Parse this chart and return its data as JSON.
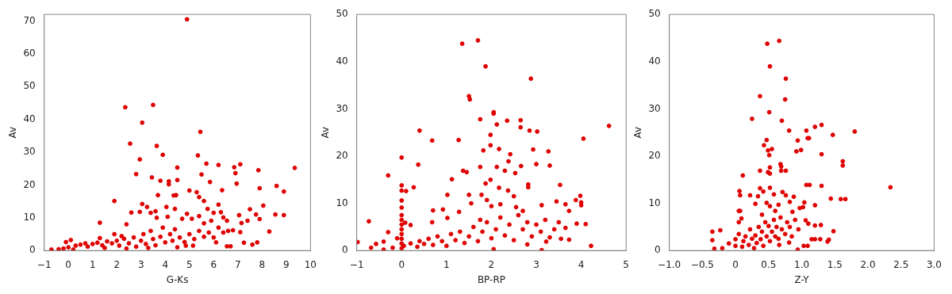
{
  "chart_data": [
    {
      "type": "scatter",
      "xlabel": "G-Ks",
      "ylabel": "Av",
      "xlim": [
        -1,
        10
      ],
      "ylim": [
        0,
        72
      ],
      "xticks": [
        {
          "value": -1,
          "label": "−1"
        },
        0,
        1,
        2,
        3,
        4,
        5,
        6,
        7,
        8,
        9,
        10
      ],
      "yticks": [
        0,
        10,
        20,
        30,
        40,
        50,
        60,
        70
      ],
      "grid": false,
      "legend": false,
      "marker": "circle",
      "series": [
        {
          "color": "#e00000",
          "x": [
            4.9,
            2.35,
            3.5,
            3.05,
            5.45,
            2.55,
            3.65,
            3.9,
            2.95,
            5.35,
            5.7,
            6.2,
            7.1,
            6.85,
            4.5,
            9.35,
            7.85,
            2.8,
            6.9,
            5.5,
            3.45,
            3.8,
            4.15,
            4.15,
            4.5,
            5.85,
            6.95,
            8.6,
            7.9,
            5,
            6.35,
            8.9,
            5.3,
            3.7,
            4.35,
            4.45,
            5.4,
            1.9,
            5.6,
            5.75,
            6.2,
            8.05,
            3.05,
            3.25,
            4.05,
            2.6,
            2.95,
            3.4,
            3.6,
            4.4,
            4.9,
            6.0,
            6.3,
            7.05,
            7.75,
            8.55,
            8.9,
            7.5,
            1.3,
            2.4,
            3.65,
            4.1,
            4.7,
            5.1,
            5.4,
            5.6,
            5.9,
            6.4,
            6.55,
            7.15,
            7.4,
            7.9,
            8.3,
            7.1,
            6.8,
            7.25,
            7.6,
            7.8,
            6.55,
            6.7,
            6.1,
            5.15,
            4.85,
            -0.7,
            -0.4,
            -0.2,
            0,
            0.1,
            -0.1,
            0.3,
            0.5,
            0.7,
            0.8,
            1,
            1.2,
            1.4,
            1.6,
            1.8,
            2,
            2.1,
            2.3,
            2.5,
            2.7,
            2.8,
            3,
            3.1,
            3.2,
            3.4,
            3.5,
            3.6,
            3.8,
            3.9,
            4,
            4.2,
            4.3,
            4.4,
            4.6,
            4.8,
            5,
            5.2,
            5.4,
            5.6,
            5.8,
            6,
            6.2,
            6.4,
            6.6,
            1.9,
            2.2,
            1.3,
            3.3,
            4.5,
            0.2,
            1.5,
            2.4
          ],
          "values": [
            70.5,
            43.7,
            44.4,
            39,
            36.2,
            32.6,
            31.9,
            29.2,
            27.8,
            29,
            26.5,
            26.1,
            26.3,
            25.4,
            25.3,
            25.2,
            24.5,
            23.3,
            23.6,
            23.2,
            22.3,
            21.3,
            21.1,
            20.2,
            21.5,
            20.9,
            20.4,
            19.7,
            19,
            18.3,
            18.4,
            18,
            17.8,
            16.9,
            16.8,
            16.9,
            16.3,
            15.1,
            15.1,
            12.7,
            14,
            13.7,
            14.2,
            13.3,
            13.3,
            11.6,
            11.8,
            11.5,
            12,
            12.7,
            11.2,
            11.5,
            11.7,
            10.8,
            11,
            11,
            10.8,
            12.6,
            8.5,
            8,
            10,
            10.3,
            9.7,
            9.7,
            10.5,
            8.3,
            9.1,
            10.1,
            9.1,
            8.4,
            9.1,
            9.6,
            5.8,
            5.6,
            6.2,
            2.4,
            1.8,
            2.5,
            1.3,
            1.3,
            2.5,
            1.5,
            1.5,
            0.3,
            0.4,
            0.6,
            1,
            3.2,
            2.6,
            1.5,
            1.8,
            2.2,
            1.2,
            2,
            2.4,
            1.6,
            2.8,
            2.2,
            3,
            1.5,
            3.6,
            2.2,
            4,
            1.2,
            3,
            5,
            2,
            6,
            3.5,
            1.6,
            4.2,
            7,
            2.5,
            5,
            3,
            6.5,
            4,
            2.6,
            5,
            3.5,
            6,
            4.2,
            5.5,
            4,
            7,
            5.5,
            6,
            5,
            4.4,
            3.8,
            0.8,
            1,
            0.3,
            0.8,
            0.6
          ]
        }
      ]
    },
    {
      "type": "scatter",
      "xlabel": "BP-RP",
      "ylabel": "Av",
      "xlim": [
        -1,
        5
      ],
      "ylim": [
        0,
        50
      ],
      "xticks": [
        {
          "value": -1,
          "label": "−1"
        },
        0,
        1,
        2,
        3,
        4,
        5
      ],
      "yticks": [
        0,
        10,
        20,
        30,
        40,
        50
      ],
      "grid": false,
      "legend": false,
      "marker": "circle",
      "series": [
        {
          "color": "#e00000",
          "x": [
            1.35,
            1.7,
            1.87,
            2.88,
            1.5,
            1.52,
            2.05,
            2.05,
            1.75,
            2.35,
            2.65,
            2.12,
            2.65,
            4.62,
            0.4,
            2.85,
            3.02,
            1.98,
            4.05,
            0.68,
            1.27,
            1.98,
            1.82,
            2.17,
            2.93,
            3.27,
            2.42,
            0,
            2.38,
            0.37,
            3.0,
            2.12,
            2.66,
            3.3,
            1.75,
            1.37,
            1.45,
            2.3,
            2.53,
            -0.3,
            1.12,
            1.98,
            1.87,
            3.53,
            2.82,
            2.82,
            0.27,
            0,
            2.17,
            0,
            0.1,
            1.02,
            1.5,
            1.78,
            2.37,
            3.98,
            0,
            0,
            2.5,
            1.9,
            3.88,
            4,
            4,
            3.45,
            3.65,
            3.12,
            2.7,
            0.7,
            0.92,
            1.28,
            -0.73,
            -0.98,
            -0.3,
            -0.4,
            -0.57,
            -0.68,
            -0.1,
            0.2,
            0.08,
            0.68,
            1.02,
            3.73,
            4.22,
            4.1,
            3.9,
            3.73,
            3.55,
            3.3,
            3.22,
            3.12,
            2.05,
            2.8,
            0,
            0,
            0,
            0,
            0,
            0,
            0,
            0,
            -0.4,
            -0.2,
            0.05,
            0.2,
            0.35,
            0.4,
            0.5,
            0.6,
            0.7,
            0.8,
            0.9,
            1,
            1.1,
            1.2,
            1.3,
            1.4,
            1.5,
            1.6,
            1.7,
            1.8,
            1.9,
            2,
            2.1,
            2.2,
            2.3,
            2.4,
            2.5,
            2.6,
            2.7,
            2.8,
            2.9,
            3,
            3.1,
            3.2,
            3.4,
            3.5,
            3.65,
            2.55,
            2.2,
            2.0,
            1.55,
            1.75
          ],
          "values": [
            43.8,
            44.5,
            39,
            36.4,
            32.7,
            32,
            29.3,
            29,
            27.8,
            27.5,
            27.6,
            26.7,
            26.1,
            26.4,
            25.4,
            25.4,
            25.2,
            24.5,
            23.7,
            23.3,
            23.4,
            22.3,
            21.2,
            21.5,
            21.4,
            21,
            20.4,
            19.7,
            18.9,
            18.2,
            18.3,
            17.7,
            17.9,
            18,
            17.7,
            16.9,
            16.6,
            16.9,
            16.4,
            15.9,
            15.1,
            15,
            14.2,
            13.9,
            13.4,
            14,
            13.4,
            13.8,
            13.3,
            12.7,
            12.6,
            11.8,
            11.8,
            11.8,
            12.7,
            11.6,
            10.6,
            9.1,
            11.5,
            10.7,
            10.7,
            10.2,
            9.6,
            10.4,
            9.8,
            9.6,
            8.4,
            8.5,
            8.7,
            8.2,
            6.2,
            1.8,
            3.9,
            1.9,
            1.4,
            0.6,
            2.6,
            5.4,
            5.9,
            6,
            6.9,
            8.4,
            1,
            5.6,
            5.7,
            2.3,
            2.5,
            2.8,
            1.9,
            0.1,
            0.3,
            1.3,
            0.5,
            1.5,
            2.5,
            3.5,
            4.5,
            5.5,
            6.5,
            7.5,
            0.2,
            0.6,
            1,
            1.5,
            0.8,
            2,
            1.4,
            2.5,
            1.2,
            3,
            2,
            1,
            3.5,
            2.2,
            4,
            1.6,
            3,
            5,
            2,
            4,
            6,
            2.6,
            4.5,
            7,
            3.2,
            5.5,
            2.2,
            7.5,
            4.5,
            6,
            3,
            5.5,
            4,
            6.5,
            4.5,
            6,
            4.8,
            9.2,
            9.8,
            9.4,
            10,
            6.5
          ]
        }
      ]
    },
    {
      "type": "scatter",
      "xlabel": "Z-Y",
      "ylabel": "Av",
      "xlim": [
        -1,
        3
      ],
      "ylim": [
        0,
        50
      ],
      "xticks": [
        {
          "value": -1,
          "label": "−1.0"
        },
        {
          "value": -0.5,
          "label": "−0.5"
        },
        0,
        0.5,
        {
          "value": 1,
          "label": "1.0"
        },
        1.5,
        {
          "value": 2,
          "label": "2.0"
        },
        2.5,
        {
          "value": 3,
          "label": "3.0"
        }
      ],
      "yticks": [
        0,
        10,
        20,
        30,
        40,
        50
      ],
      "grid": false,
      "legend": false,
      "marker": "circle",
      "series": [
        {
          "color": "#e00000",
          "x": [
            0.48,
            0.66,
            0.52,
            0.76,
            0.37,
            0.75,
            0.51,
            0.25,
            0.7,
            0.81,
            1.07,
            1.2,
            1.3,
            1.47,
            1.8,
            1.09,
            1.11,
            0.47,
            0.94,
            0.43,
            0.49,
            0.55,
            0.92,
            0.99,
            0.51,
            1.3,
            1.62,
            1.62,
            0.68,
            0.69,
            0.52,
            0.37,
            0.69,
            0.76,
            0.49,
            0.52,
            0.11,
            1.07,
            1.12,
            1.3,
            2.34,
            0.52,
            0.37,
            0.06,
            0.42,
            0.07,
            0.22,
            0.34,
            0.58,
            0.71,
            0.76,
            0.88,
            1.44,
            1.59,
            1.66,
            1.04,
            1.2,
            0.3,
            0.47,
            0.52,
            0.65,
            0.82,
            0.97,
            1.02,
            0.05,
            0.07,
            0.09,
            0.05,
            -0.35,
            -0.23,
            -0.35,
            -0.32,
            1.48,
            1.39,
            1.41,
            1.28,
            1.2,
            1.15,
            1.09,
            1.03,
            0.94,
            0.81,
            0.66,
            1.29,
            1.2,
            1.1,
            1.06,
            -0.2,
            -0.1,
            0,
            0,
            0.05,
            0.1,
            0.12,
            0.15,
            0.2,
            0.22,
            0.25,
            0.28,
            0.3,
            0.32,
            0.35,
            0.38,
            0.4,
            0.42,
            0.45,
            0.47,
            0.5,
            0.52,
            0.55,
            0.58,
            0.6,
            0.62,
            0.65,
            0.68,
            0.7,
            0.75,
            0.78,
            0.82,
            0.85,
            0.9,
            0.95,
            0.86,
            0.4,
            0.6
          ],
          "values": [
            43.8,
            44.4,
            39,
            36.4,
            32.7,
            32,
            29.3,
            27.9,
            27.5,
            25.4,
            25.4,
            26.2,
            26.6,
            24.5,
            25.2,
            23.8,
            23.8,
            23.4,
            23.3,
            22.3,
            21.2,
            21.5,
            21,
            21.3,
            20.2,
            20.4,
            18.9,
            18,
            18.3,
            17.8,
            17.6,
            16.9,
            16.9,
            16.9,
            16.6,
            16.3,
            15.9,
            13.9,
            13.9,
            13.7,
            13.4,
            13.3,
            13.2,
            12.6,
            12.5,
            11.7,
            11.7,
            11.5,
            11.9,
            12.4,
            11.7,
            11.4,
            11,
            10.9,
            10.9,
            10.2,
            9.6,
            9.9,
            10.1,
            9.4,
            9.7,
            10.3,
            9,
            9.2,
            8.4,
            8.4,
            6.8,
            6,
            4,
            4.3,
            2.2,
            0.4,
            4.1,
            1.9,
            2.3,
            2.4,
            2.4,
            2.4,
            1,
            1,
            0.2,
            1.7,
            1.2,
            5.4,
            5.3,
            5.7,
            6.4,
            0.5,
            1.5,
            1,
            2.4,
            3.5,
            0.8,
            2,
            3,
            1.2,
            4.5,
            2.5,
            0.5,
            3.2,
            1.6,
            5,
            2.4,
            4,
            1,
            6,
            3,
            5.2,
            2,
            4,
            6.5,
            3,
            5,
            2.5,
            7,
            4.5,
            3.5,
            6,
            5,
            3,
            6.5,
            4.5,
            8.2,
            7.6,
            8.4
          ]
        }
      ]
    }
  ]
}
